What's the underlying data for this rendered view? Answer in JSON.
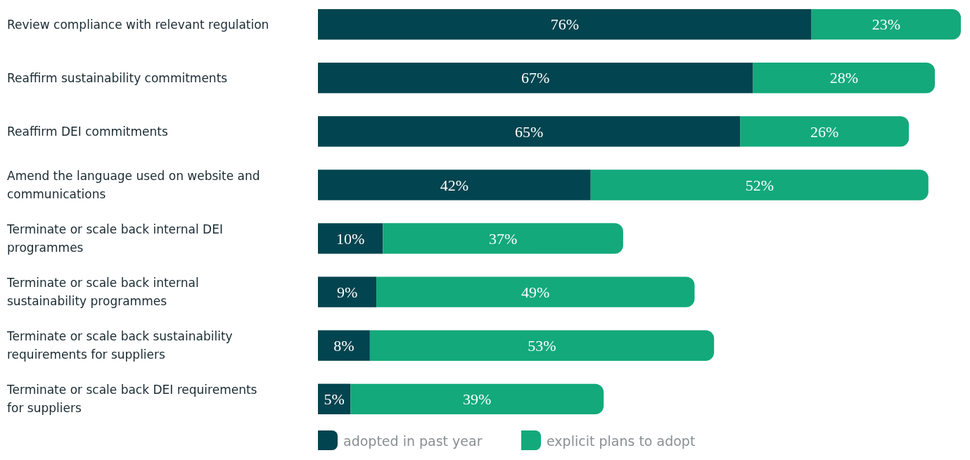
{
  "chart_data": {
    "type": "bar",
    "orientation": "horizontal",
    "stacked": true,
    "legend": "bottom",
    "categories": [
      "Review compliance with relevant regulation",
      "Reaffirm sustainability commitments",
      "Reaffirm DEI commitments",
      "Amend the language used on website and communications",
      "Terminate or scale back internal DEI programmes",
      "Terminate or scale back internal sustainability programmes",
      "Terminate or scale back sustainability requirements for suppliers",
      "Terminate or scale back DEI requirements for suppliers"
    ],
    "series": [
      {
        "name": "adopted in past year",
        "color": "#02444f",
        "values": [
          76,
          67,
          65,
          42,
          10,
          9,
          8,
          5
        ],
        "value_labels": [
          "76%",
          "67%",
          "65%",
          "42%",
          "10%",
          "9%",
          "8%",
          "5%"
        ]
      },
      {
        "name": "explicit plans to adopt",
        "color": "#13a97b",
        "values": [
          23,
          28,
          26,
          52,
          37,
          49,
          53,
          39
        ],
        "value_labels": [
          "23%",
          "28%",
          "26%",
          "52%",
          "37%",
          "49%",
          "53%",
          "39%"
        ]
      }
    ]
  }
}
